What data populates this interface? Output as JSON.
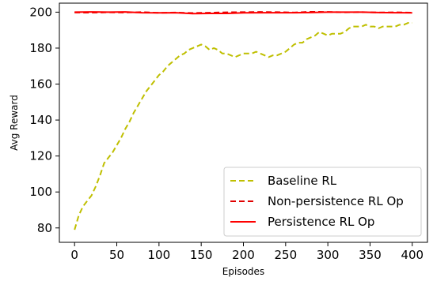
{
  "chart_data": {
    "type": "line",
    "xlabel": "Episodes",
    "ylabel": "Avg Reward",
    "xlim": [
      -18,
      418
    ],
    "ylim": [
      72,
      205
    ],
    "xticks": [
      0,
      50,
      100,
      150,
      200,
      250,
      300,
      350,
      400
    ],
    "yticks": [
      80,
      100,
      120,
      140,
      160,
      180,
      200
    ],
    "grid": false,
    "legend_position": "lower-right",
    "series": [
      {
        "name": "Baseline RL",
        "color": "#bfbf00",
        "style": "dashed",
        "x": [
          0,
          5,
          10,
          15,
          20,
          25,
          30,
          35,
          40,
          45,
          50,
          55,
          60,
          65,
          70,
          75,
          80,
          85,
          90,
          95,
          100,
          105,
          110,
          115,
          120,
          125,
          130,
          135,
          140,
          145,
          150,
          155,
          160,
          165,
          170,
          175,
          180,
          185,
          190,
          195,
          200,
          205,
          210,
          215,
          220,
          225,
          230,
          235,
          240,
          245,
          250,
          255,
          260,
          265,
          270,
          275,
          280,
          285,
          290,
          295,
          300,
          305,
          310,
          315,
          320,
          325,
          330,
          335,
          340,
          345,
          350,
          355,
          360,
          365,
          370,
          375,
          380,
          385,
          390,
          395,
          400
        ],
        "values": [
          79,
          87,
          92,
          95,
          98,
          103,
          109,
          116,
          119,
          122,
          126,
          130,
          135,
          139,
          144,
          148,
          152,
          156,
          159,
          162,
          165,
          167,
          170,
          172,
          174,
          176,
          177,
          179,
          180,
          181,
          182,
          181,
          179,
          180,
          179,
          177,
          177,
          176,
          175,
          176,
          177,
          177,
          177,
          178,
          177,
          176,
          175,
          176,
          176,
          177,
          178,
          180,
          182,
          183,
          183,
          185,
          186,
          187,
          189,
          188,
          187,
          188,
          188,
          188,
          189,
          191,
          192,
          192,
          192,
          193,
          192,
          192,
          191,
          192,
          192,
          192,
          192,
          193,
          193,
          194,
          194
        ]
      },
      {
        "name": "Non-persistence RL Op",
        "color": "#e00000",
        "style": "dashed",
        "x": [
          0,
          20,
          40,
          60,
          80,
          100,
          120,
          140,
          160,
          180,
          200,
          220,
          240,
          260,
          280,
          300,
          320,
          340,
          360,
          380,
          400
        ],
        "values": [
          199.8,
          199.7,
          199.9,
          199.8,
          200.0,
          199.6,
          199.8,
          199.5,
          199.7,
          199.9,
          200.0,
          200.1,
          200.0,
          199.8,
          200.2,
          200.1,
          199.9,
          200.0,
          199.8,
          199.9,
          199.7
        ]
      },
      {
        "name": "Persistence RL Op",
        "color": "#ff0000",
        "style": "solid",
        "x": [
          0,
          20,
          40,
          60,
          80,
          100,
          120,
          140,
          160,
          180,
          200,
          220,
          240,
          260,
          280,
          300,
          320,
          340,
          360,
          380,
          400
        ],
        "values": [
          200.0,
          200.1,
          200.0,
          200.1,
          199.7,
          199.6,
          199.7,
          199.2,
          199.3,
          199.3,
          199.6,
          199.7,
          199.7,
          199.7,
          199.8,
          200.0,
          200.0,
          200.0,
          199.8,
          199.7,
          199.6
        ]
      }
    ]
  }
}
